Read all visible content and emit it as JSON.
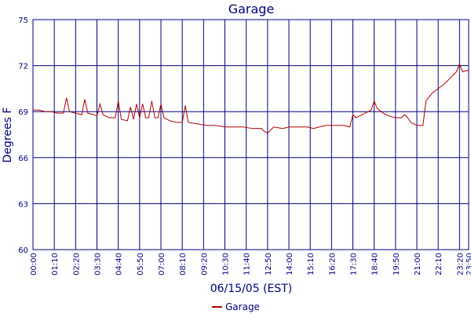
{
  "chart_data": {
    "type": "line",
    "title": "Garage",
    "x_label": "06/15/05 (EST)",
    "y_label": "Degrees F",
    "x": [
      "00:00",
      "00:20",
      "00:40",
      "01:00",
      "01:20",
      "01:40",
      "01:50",
      "02:00",
      "02:20",
      "02:40",
      "02:50",
      "03:00",
      "03:20",
      "03:30",
      "03:40",
      "03:50",
      "04:10",
      "04:30",
      "04:40",
      "04:50",
      "05:10",
      "05:20",
      "05:30",
      "05:40",
      "05:50",
      "06:00",
      "06:10",
      "06:20",
      "06:30",
      "06:40",
      "06:50",
      "07:00",
      "07:10",
      "07:30",
      "07:50",
      "08:10",
      "08:20",
      "08:30",
      "09:00",
      "09:30",
      "10:00",
      "10:30",
      "11:00",
      "11:30",
      "12:00",
      "12:30",
      "12:40",
      "12:50",
      "13:10",
      "13:40",
      "14:00",
      "14:30",
      "15:00",
      "15:20",
      "15:40",
      "16:00",
      "16:30",
      "17:00",
      "17:20",
      "17:30",
      "17:40",
      "18:00",
      "18:20",
      "18:30",
      "18:40",
      "18:50",
      "19:10",
      "19:30",
      "19:50",
      "20:10",
      "20:20",
      "20:30",
      "20:40",
      "21:00",
      "21:20",
      "21:30",
      "21:50",
      "22:10",
      "22:30",
      "22:50",
      "23:10",
      "23:20",
      "23:30",
      "23:50"
    ],
    "series": [
      {
        "name": "Garage",
        "color": "#b00000",
        "values": [
          69.1,
          69.1,
          69.0,
          69.0,
          68.9,
          68.9,
          69.9,
          69.0,
          68.9,
          68.8,
          69.8,
          68.9,
          68.8,
          68.7,
          69.5,
          68.8,
          68.6,
          68.6,
          69.7,
          68.5,
          68.4,
          69.3,
          68.5,
          69.5,
          68.6,
          69.5,
          68.6,
          68.6,
          69.7,
          68.6,
          68.6,
          69.5,
          68.6,
          68.4,
          68.3,
          68.3,
          69.4,
          68.3,
          68.2,
          68.1,
          68.1,
          68.0,
          68.0,
          68.0,
          67.9,
          67.9,
          67.7,
          67.6,
          68.0,
          67.9,
          68.0,
          68.0,
          68.0,
          67.9,
          68.0,
          68.1,
          68.1,
          68.1,
          68.0,
          68.8,
          68.6,
          68.8,
          69.0,
          69.1,
          69.7,
          69.2,
          68.9,
          68.7,
          68.6,
          68.6,
          68.8,
          68.6,
          68.3,
          68.1,
          68.1,
          69.7,
          70.2,
          70.5,
          70.8,
          71.2,
          71.6,
          72.1,
          71.6,
          71.7
        ]
      }
    ],
    "xlim": [
      "00:00",
      "23:50"
    ],
    "xticks": [
      "00:00",
      "01:10",
      "02:20",
      "03:30",
      "04:40",
      "05:50",
      "07:00",
      "08:10",
      "09:20",
      "10:30",
      "11:40",
      "12:50",
      "14:00",
      "15:10",
      "16:20",
      "17:30",
      "18:40",
      "19:50",
      "21:00",
      "22:10",
      "23:20",
      "23:50"
    ],
    "ylim": [
      60,
      75
    ],
    "yticks": [
      60,
      63,
      66,
      69,
      72,
      75
    ],
    "grid": true
  }
}
